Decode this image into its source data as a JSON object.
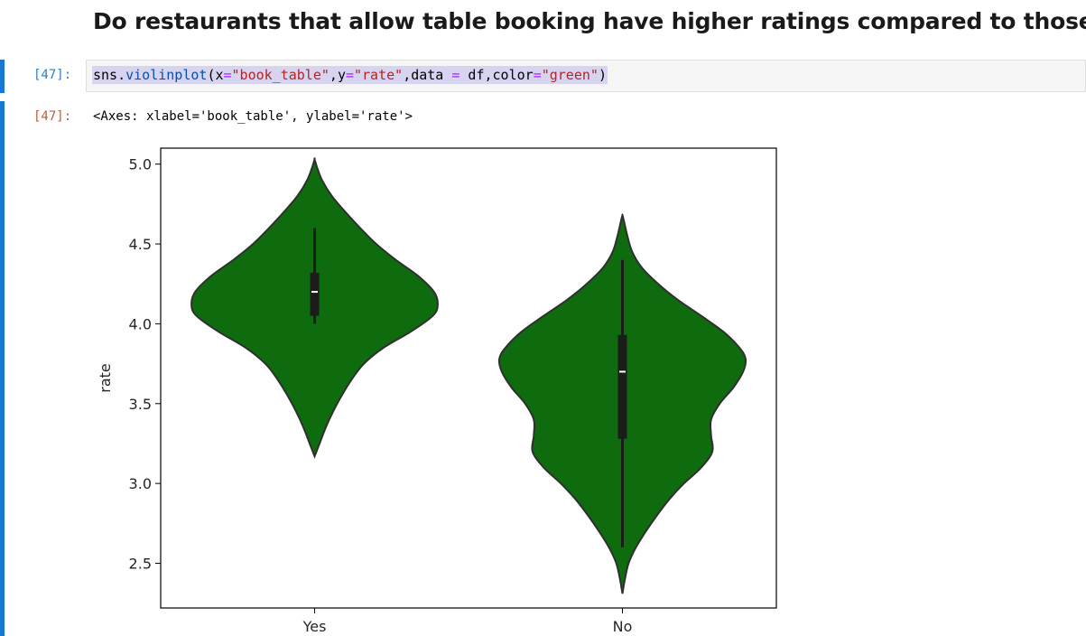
{
  "notebook": {
    "heading": "Do restaurants that allow table booking have higher ratings compared to those that don't",
    "input_prompt": "[47]:",
    "output_prompt": "[47]:",
    "code": {
      "module": "sns",
      "dot": ".",
      "function": "violinplot",
      "open_paren": "(",
      "arg_x": "x",
      "eq": "=",
      "x_value": "\"book_table\"",
      "comma": ",",
      "arg_y": "y",
      "y_value": "\"rate\"",
      "arg_data": "data ",
      "data_eq": "=",
      "data_value": " df",
      "arg_color": "color",
      "color_value": "\"green\"",
      "close_paren": ")"
    },
    "output_repr": "<Axes: xlabel='book_table', ylabel='rate'>"
  },
  "colors": {
    "cell_bar": "#1976d2",
    "violin_fill": "#0e6c0e",
    "violin_edge": "#2f2f2f",
    "box": "#1c1c1c"
  },
  "chart_data": {
    "type": "violin",
    "xlabel": "",
    "ylabel": "rate",
    "categories": [
      "Yes",
      "No"
    ],
    "ylim": [
      2.22,
      5.1
    ],
    "yticks": [
      2.5,
      3.0,
      3.5,
      4.0,
      4.5,
      5.0
    ],
    "ytick_labels": [
      "2.5",
      "3.0",
      "3.5",
      "4.0",
      "4.5",
      "5.0"
    ],
    "grid": false,
    "series": [
      {
        "category": "Yes",
        "median": 4.2,
        "q1": 4.05,
        "q3": 4.32,
        "whisker_low": 4.0,
        "whisker_high": 4.6,
        "kde_min": 3.17,
        "kde_max": 5.03,
        "density_profile": [
          [
            3.17,
            0.0
          ],
          [
            3.25,
            0.04
          ],
          [
            3.35,
            0.09
          ],
          [
            3.45,
            0.15
          ],
          [
            3.55,
            0.22
          ],
          [
            3.65,
            0.3
          ],
          [
            3.75,
            0.4
          ],
          [
            3.85,
            0.56
          ],
          [
            3.95,
            0.78
          ],
          [
            4.05,
            0.96
          ],
          [
            4.12,
            1.0
          ],
          [
            4.2,
            0.97
          ],
          [
            4.3,
            0.84
          ],
          [
            4.4,
            0.66
          ],
          [
            4.5,
            0.5
          ],
          [
            4.6,
            0.37
          ],
          [
            4.7,
            0.25
          ],
          [
            4.8,
            0.14
          ],
          [
            4.9,
            0.06
          ],
          [
            4.98,
            0.02
          ],
          [
            5.03,
            0.0
          ]
        ]
      },
      {
        "category": "No",
        "median": 3.7,
        "q1": 3.28,
        "q3": 3.93,
        "whisker_low": 2.6,
        "whisker_high": 4.4,
        "kde_min": 2.31,
        "kde_max": 4.68,
        "density_profile": [
          [
            2.31,
            0.0
          ],
          [
            2.4,
            0.02
          ],
          [
            2.5,
            0.05
          ],
          [
            2.6,
            0.11
          ],
          [
            2.7,
            0.19
          ],
          [
            2.8,
            0.28
          ],
          [
            2.9,
            0.38
          ],
          [
            3.0,
            0.5
          ],
          [
            3.1,
            0.64
          ],
          [
            3.2,
            0.73
          ],
          [
            3.3,
            0.72
          ],
          [
            3.4,
            0.72
          ],
          [
            3.5,
            0.79
          ],
          [
            3.6,
            0.9
          ],
          [
            3.7,
            0.98
          ],
          [
            3.78,
            1.0
          ],
          [
            3.85,
            0.95
          ],
          [
            3.95,
            0.82
          ],
          [
            4.05,
            0.64
          ],
          [
            4.15,
            0.45
          ],
          [
            4.25,
            0.29
          ],
          [
            4.35,
            0.16
          ],
          [
            4.45,
            0.08
          ],
          [
            4.55,
            0.04
          ],
          [
            4.65,
            0.01
          ],
          [
            4.68,
            0.0
          ]
        ]
      }
    ]
  }
}
